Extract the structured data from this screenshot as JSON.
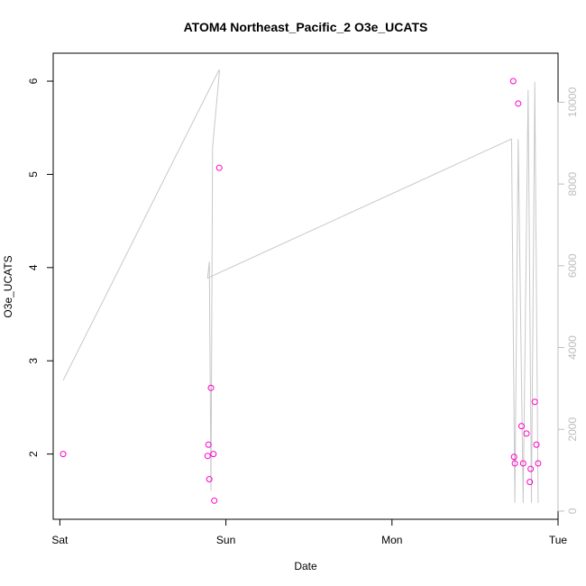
{
  "chart_data": {
    "type": "scatter",
    "title": "ATOM4 Northeast_Pacific_2 O3e_UCATS",
    "xlabel": "Date",
    "ylabel": "O3e_UCATS",
    "x_ticks": [
      "Sat",
      "Sun",
      "Mon",
      "Tue"
    ],
    "ylim": [
      1.3,
      6.3
    ],
    "y_ticks": [
      2,
      3,
      4,
      5,
      6
    ],
    "y2lim": [
      -200,
      11200
    ],
    "y2_ticks": [
      0,
      2000,
      4000,
      6000,
      8000,
      10000
    ],
    "xlim_days": [
      -0.04,
      3.0
    ],
    "grid": false,
    "series": [
      {
        "axis": "left",
        "color": "#ff00cc",
        "marker": "open-circle",
        "points": [
          {
            "x": 0.02,
            "y": 2.0
          },
          {
            "x": 0.89,
            "y": 1.98
          },
          {
            "x": 0.895,
            "y": 2.1
          },
          {
            "x": 0.9,
            "y": 1.73
          },
          {
            "x": 0.91,
            "y": 2.71
          },
          {
            "x": 0.925,
            "y": 2.0
          },
          {
            "x": 0.93,
            "y": 1.5
          },
          {
            "x": 0.96,
            "y": 5.07
          },
          {
            "x": 2.73,
            "y": 6.0
          },
          {
            "x": 2.735,
            "y": 1.97
          },
          {
            "x": 2.74,
            "y": 1.9
          },
          {
            "x": 2.76,
            "y": 5.76
          },
          {
            "x": 2.78,
            "y": 2.3
          },
          {
            "x": 2.79,
            "y": 1.9
          },
          {
            "x": 2.81,
            "y": 2.22
          },
          {
            "x": 2.83,
            "y": 1.7
          },
          {
            "x": 2.835,
            "y": 1.84
          },
          {
            "x": 2.86,
            "y": 2.56
          },
          {
            "x": 2.87,
            "y": 2.1
          },
          {
            "x": 2.88,
            "y": 1.9
          }
        ]
      },
      {
        "axis": "right",
        "color": "#c8c8c8",
        "type": "line",
        "points": [
          {
            "x": 0.02,
            "y": 3200
          },
          {
            "x": 0.96,
            "y": 10800
          },
          {
            "x": 0.96,
            "y": 10700
          },
          {
            "x": 0.92,
            "y": 8900
          },
          {
            "x": 0.91,
            "y": 500
          },
          {
            "x": 0.9,
            "y": 6100
          },
          {
            "x": 0.89,
            "y": 5700
          },
          {
            "x": 2.72,
            "y": 9100
          },
          {
            "x": 2.74,
            "y": 200
          },
          {
            "x": 2.76,
            "y": 9100
          },
          {
            "x": 2.79,
            "y": 200
          },
          {
            "x": 2.82,
            "y": 10300
          },
          {
            "x": 2.84,
            "y": 200
          },
          {
            "x": 2.86,
            "y": 10500
          },
          {
            "x": 2.88,
            "y": 200
          }
        ]
      }
    ]
  }
}
